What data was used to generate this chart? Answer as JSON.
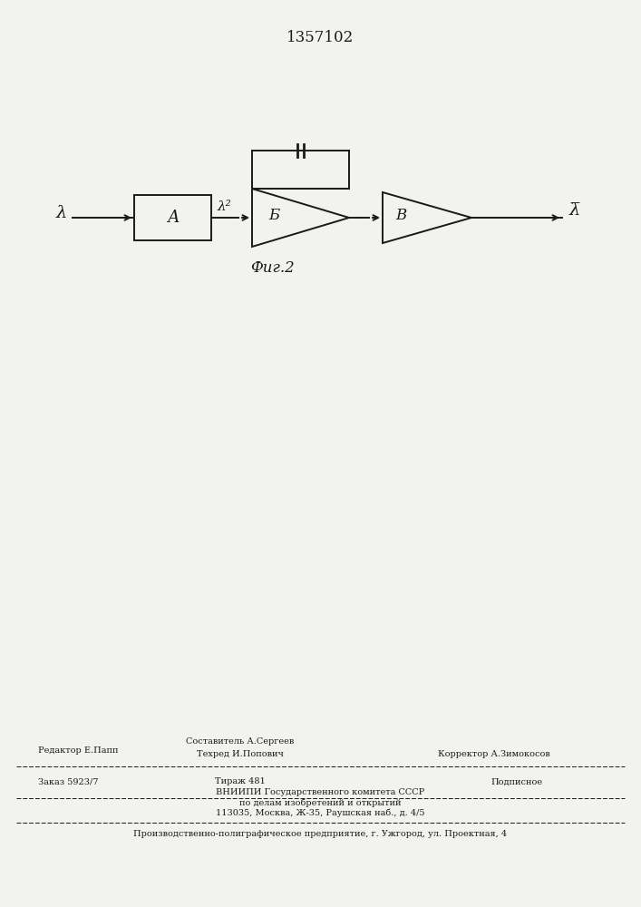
{
  "patent_number": "1357102",
  "fig_caption": "Фиг.2",
  "bg_color": "#f2f2ee",
  "line_color": "#1a1a1a",
  "block_A_label": "А",
  "block_B_label": "Б",
  "block_V_label": "В",
  "input_label": "λ",
  "mid_label": "λ²",
  "output_label": "λ̅",
  "footer_line1_left": "Редактор Е.Папп",
  "footer_line1_center": "Составитель А.Сергеев",
  "footer_line2_center": "Техред И.Попович",
  "footer_line2_right": "Корректор А.Зимокосов",
  "footer_line3_left": "Заказ 5923/7",
  "footer_line3_center": "Тираж 481",
  "footer_line3_right": "Подписное",
  "footer_line4": "ВНИИПИ Государственного комитета СССР",
  "footer_line5": "по делам изобретений и открытий",
  "footer_line6": "113035, Москва, Ж-35, Раушская наб., д. 4/5",
  "footer_last": "Производственно-полиграфическое предприятие, г. Ужгород, ул. Проектная, 4"
}
